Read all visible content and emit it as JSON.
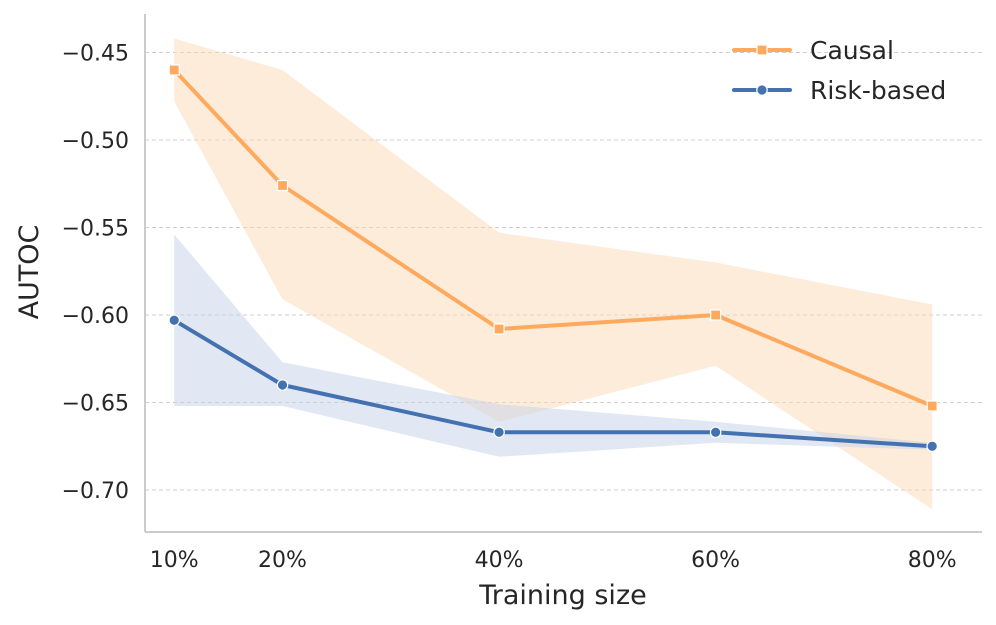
{
  "chart_data": {
    "type": "line",
    "title": "",
    "xlabel": "Training size",
    "ylabel": "AUTOC",
    "x": [
      10,
      20,
      40,
      60,
      80
    ],
    "x_tick_labels": [
      "10%",
      "20%",
      "40%",
      "60%",
      "80%"
    ],
    "y_ticks": [
      -0.45,
      -0.5,
      -0.55,
      -0.6,
      -0.65,
      -0.7
    ],
    "y_tick_labels": [
      "−0.45",
      "−0.50",
      "−0.55",
      "−0.60",
      "−0.65",
      "−0.70"
    ],
    "xlim": [
      7.3,
      84.6
    ],
    "ylim": [
      -0.724,
      -0.428
    ],
    "grid": "horizontal-dashed",
    "legend_position": "top-right",
    "series": [
      {
        "name": "Causal",
        "color": "#fdaa5e",
        "band_color": "#fdd9b5",
        "marker": "square",
        "values": [
          -0.46,
          -0.526,
          -0.608,
          -0.6,
          -0.652
        ],
        "lower": [
          -0.478,
          -0.591,
          -0.661,
          -0.629,
          -0.711
        ],
        "upper": [
          -0.442,
          -0.46,
          -0.553,
          -0.57,
          -0.594
        ]
      },
      {
        "name": "Risk-based",
        "color": "#4472b1",
        "band_color": "#c4d2ea",
        "marker": "circle",
        "values": [
          -0.603,
          -0.64,
          -0.667,
          -0.667,
          -0.675
        ],
        "lower": [
          -0.652,
          -0.652,
          -0.681,
          -0.673,
          -0.677
        ],
        "upper": [
          -0.554,
          -0.627,
          -0.651,
          -0.661,
          -0.673
        ]
      }
    ]
  }
}
